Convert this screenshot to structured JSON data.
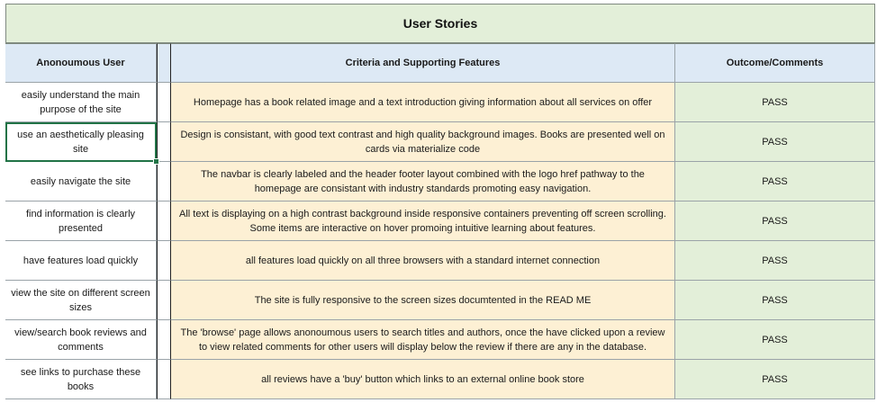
{
  "title": "User Stories",
  "headers": {
    "user": "Anonoumous User",
    "criteria": "Criteria and Supporting Features",
    "outcome": "Outcome/Comments"
  },
  "rows": [
    {
      "user": "easily understand the main purpose of the site",
      "criteria": "Homepage has a book related image and a text introduction giving information about all services on offer",
      "outcome": "PASS"
    },
    {
      "user": "use an aesthetically pleasing site",
      "criteria": "Design is consistant, with good text contrast and high quality background images. Books are presented well on cards via materialize code",
      "outcome": "PASS"
    },
    {
      "user": "easily navigate the site",
      "criteria": "The navbar is clearly labeled and the header footer layout combined with the logo href pathway to the homepage are consistant with industry standards promoting easy navigation.",
      "outcome": "PASS"
    },
    {
      "user": "find information is clearly presented",
      "criteria": "All text is displaying on a high contrast background inside responsive containers preventing off screen scrolling. Some items are interactive on hover promoing intuitive learning about features.",
      "outcome": "PASS"
    },
    {
      "user": "have features load quickly",
      "criteria": "all features load quickly on all three browsers with a standard internet connection",
      "outcome": "PASS"
    },
    {
      "user": "view the site on different screen sizes",
      "criteria": "The site is fully responsive to the screen sizes documtented in the READ ME",
      "outcome": "PASS"
    },
    {
      "user": "view/search book reviews and comments",
      "criteria": "The 'browse' page allows anonoumous users to search titles and authors, once the have clicked upon a review to view related comments for other users will display below the review if there are any in the database.",
      "outcome": "PASS"
    },
    {
      "user": "see links to purchase these books",
      "criteria": "all reviews have a 'buy' button which links to an external online book store",
      "outcome": "PASS"
    }
  ]
}
